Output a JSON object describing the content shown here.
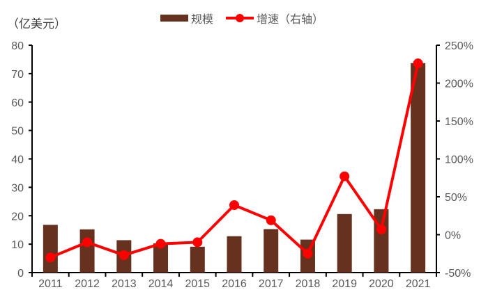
{
  "chart_data": {
    "type": "bar+line",
    "title": "",
    "unit_label": "（亿美元）",
    "categories": [
      "2011",
      "2012",
      "2013",
      "2014",
      "2015",
      "2016",
      "2017",
      "2018",
      "2019",
      "2020",
      "2021"
    ],
    "series": [
      {
        "name": "规模",
        "type": "bar",
        "axis": "left",
        "color": "#66311F",
        "values": [
          16.8,
          15.2,
          11.4,
          10.3,
          9.1,
          12.8,
          15.3,
          11.6,
          20.6,
          22.3,
          73.7
        ]
      },
      {
        "name": "增速（右轴）",
        "type": "line",
        "axis": "right",
        "color": "#FF0000",
        "values": [
          -30,
          -10,
          -27,
          -12,
          -10,
          39,
          19,
          -25,
          77,
          7,
          226
        ]
      }
    ],
    "left_axis": {
      "min": 0,
      "max": 80,
      "step": 10,
      "ticks": [
        "0",
        "10",
        "20",
        "30",
        "40",
        "50",
        "60",
        "70",
        "80"
      ]
    },
    "right_axis": {
      "min": -50,
      "max": 250,
      "step": 50,
      "ticks": [
        "-50%",
        "0%",
        "50%",
        "100%",
        "150%",
        "200%",
        "250%"
      ]
    },
    "xlabel": "",
    "ylabel": "亿美元",
    "grid": false,
    "legend_position": "top"
  },
  "legend": {
    "bar_label": "规模",
    "line_label": "增速（右轴）"
  }
}
